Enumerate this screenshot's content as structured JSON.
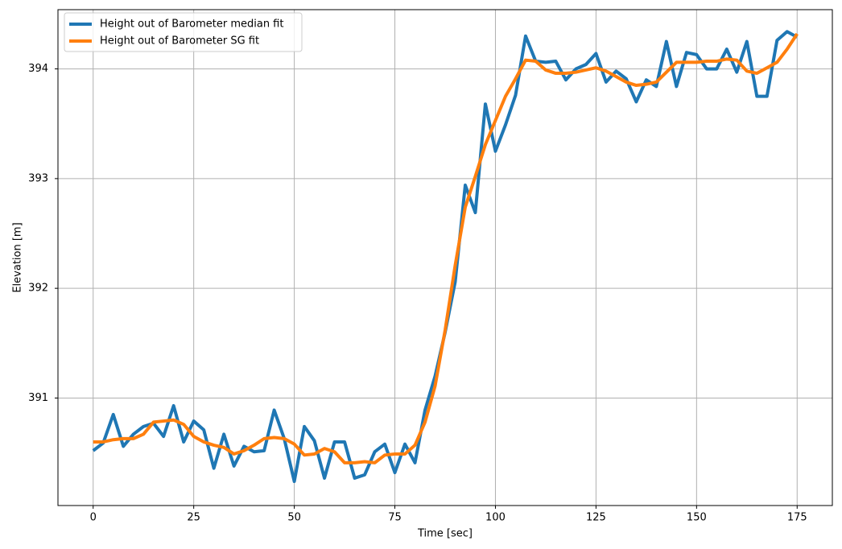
{
  "chart_data": {
    "type": "line",
    "xlabel": "Time [sec]",
    "ylabel": "Elevation [m]",
    "x": [
      0,
      2.5,
      5,
      7.5,
      10,
      12.5,
      15,
      17.5,
      20,
      22.5,
      25,
      27.5,
      30,
      32.5,
      35,
      37.5,
      40,
      42.5,
      45,
      47.5,
      50,
      52.5,
      55,
      57.5,
      60,
      62.5,
      65,
      67.5,
      70,
      72.5,
      75,
      77.5,
      80,
      82.5,
      85,
      87.5,
      90,
      92.5,
      95,
      97.5,
      100,
      102.5,
      105,
      107.5,
      110,
      112.5,
      115,
      117.5,
      120,
      122.5,
      125,
      127.5,
      130,
      132.5,
      135,
      137.5,
      140,
      142.5,
      145,
      147.5,
      150,
      152.5,
      155,
      157.5,
      160,
      162.5,
      165,
      167.5,
      170,
      172.5,
      175
    ],
    "series": [
      {
        "name": "Height out of Barometer median fit",
        "color": "#1f77b4",
        "values": [
          390.52,
          390.59,
          390.85,
          390.56,
          390.67,
          390.74,
          390.77,
          390.65,
          390.93,
          390.6,
          390.79,
          390.71,
          390.36,
          390.67,
          390.38,
          390.56,
          390.51,
          390.52,
          390.89,
          390.63,
          390.24,
          390.74,
          390.61,
          390.27,
          390.6,
          390.6,
          390.27,
          390.3,
          390.51,
          390.58,
          390.32,
          390.58,
          390.41,
          390.89,
          391.2,
          391.6,
          392.06,
          392.94,
          392.69,
          393.68,
          393.25,
          393.49,
          393.76,
          394.3,
          394.07,
          394.06,
          394.07,
          393.9,
          394.0,
          394.04,
          394.14,
          393.88,
          393.98,
          393.91,
          393.7,
          393.9,
          393.84,
          394.25,
          393.84,
          394.15,
          394.13,
          394.0,
          394.0,
          394.18,
          393.97,
          394.25,
          393.75,
          393.75,
          394.26,
          394.34,
          394.29
        ]
      },
      {
        "name": "Height out of Barometer SG fit",
        "color": "#ff7f0e",
        "values": [
          390.6,
          390.6,
          390.62,
          390.63,
          390.63,
          390.67,
          390.78,
          390.79,
          390.8,
          390.76,
          390.65,
          390.6,
          390.57,
          390.55,
          390.49,
          390.52,
          390.57,
          390.63,
          390.64,
          390.63,
          390.58,
          390.48,
          390.49,
          390.54,
          390.51,
          390.41,
          390.41,
          390.42,
          390.41,
          390.48,
          390.49,
          390.49,
          390.57,
          390.78,
          391.11,
          391.62,
          392.21,
          392.74,
          393.02,
          393.31,
          393.53,
          393.75,
          393.91,
          394.08,
          394.07,
          393.99,
          393.96,
          393.96,
          393.97,
          393.99,
          394.01,
          393.98,
          393.93,
          393.88,
          393.85,
          393.86,
          393.88,
          393.97,
          394.06,
          394.06,
          394.06,
          394.07,
          394.07,
          394.09,
          394.08,
          393.98,
          393.96,
          394.01,
          394.06,
          394.18,
          394.32
        ]
      }
    ],
    "xlim": [
      -8.75,
      183.75
    ],
    "xticks": [
      0,
      25,
      50,
      75,
      100,
      125,
      150,
      175
    ],
    "ylim": [
      390.02,
      394.54
    ],
    "yticks": [
      391,
      392,
      393,
      394
    ],
    "grid": true,
    "legend": "upper left"
  }
}
